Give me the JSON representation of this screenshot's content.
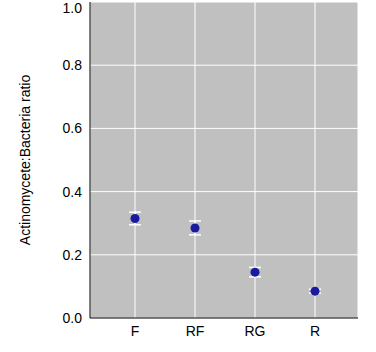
{
  "chart_data": {
    "type": "scatter",
    "y_label": "Actinomycete:Bacteria ratio",
    "categories": [
      "F",
      "RF",
      "RG",
      "R"
    ],
    "values": [
      0.315,
      0.285,
      0.145,
      0.085
    ],
    "errors": [
      0.02,
      0.022,
      0.015,
      0.006
    ],
    "color": "#1a1aa0",
    "marker": "circle",
    "ylim": [
      0,
      1
    ],
    "yticks": [
      {
        "value": 0,
        "label": "0.0"
      },
      0.2,
      0.4,
      0.6,
      0.8,
      {
        "value": 1,
        "label": "1.0"
      }
    ],
    "grid": true
  }
}
